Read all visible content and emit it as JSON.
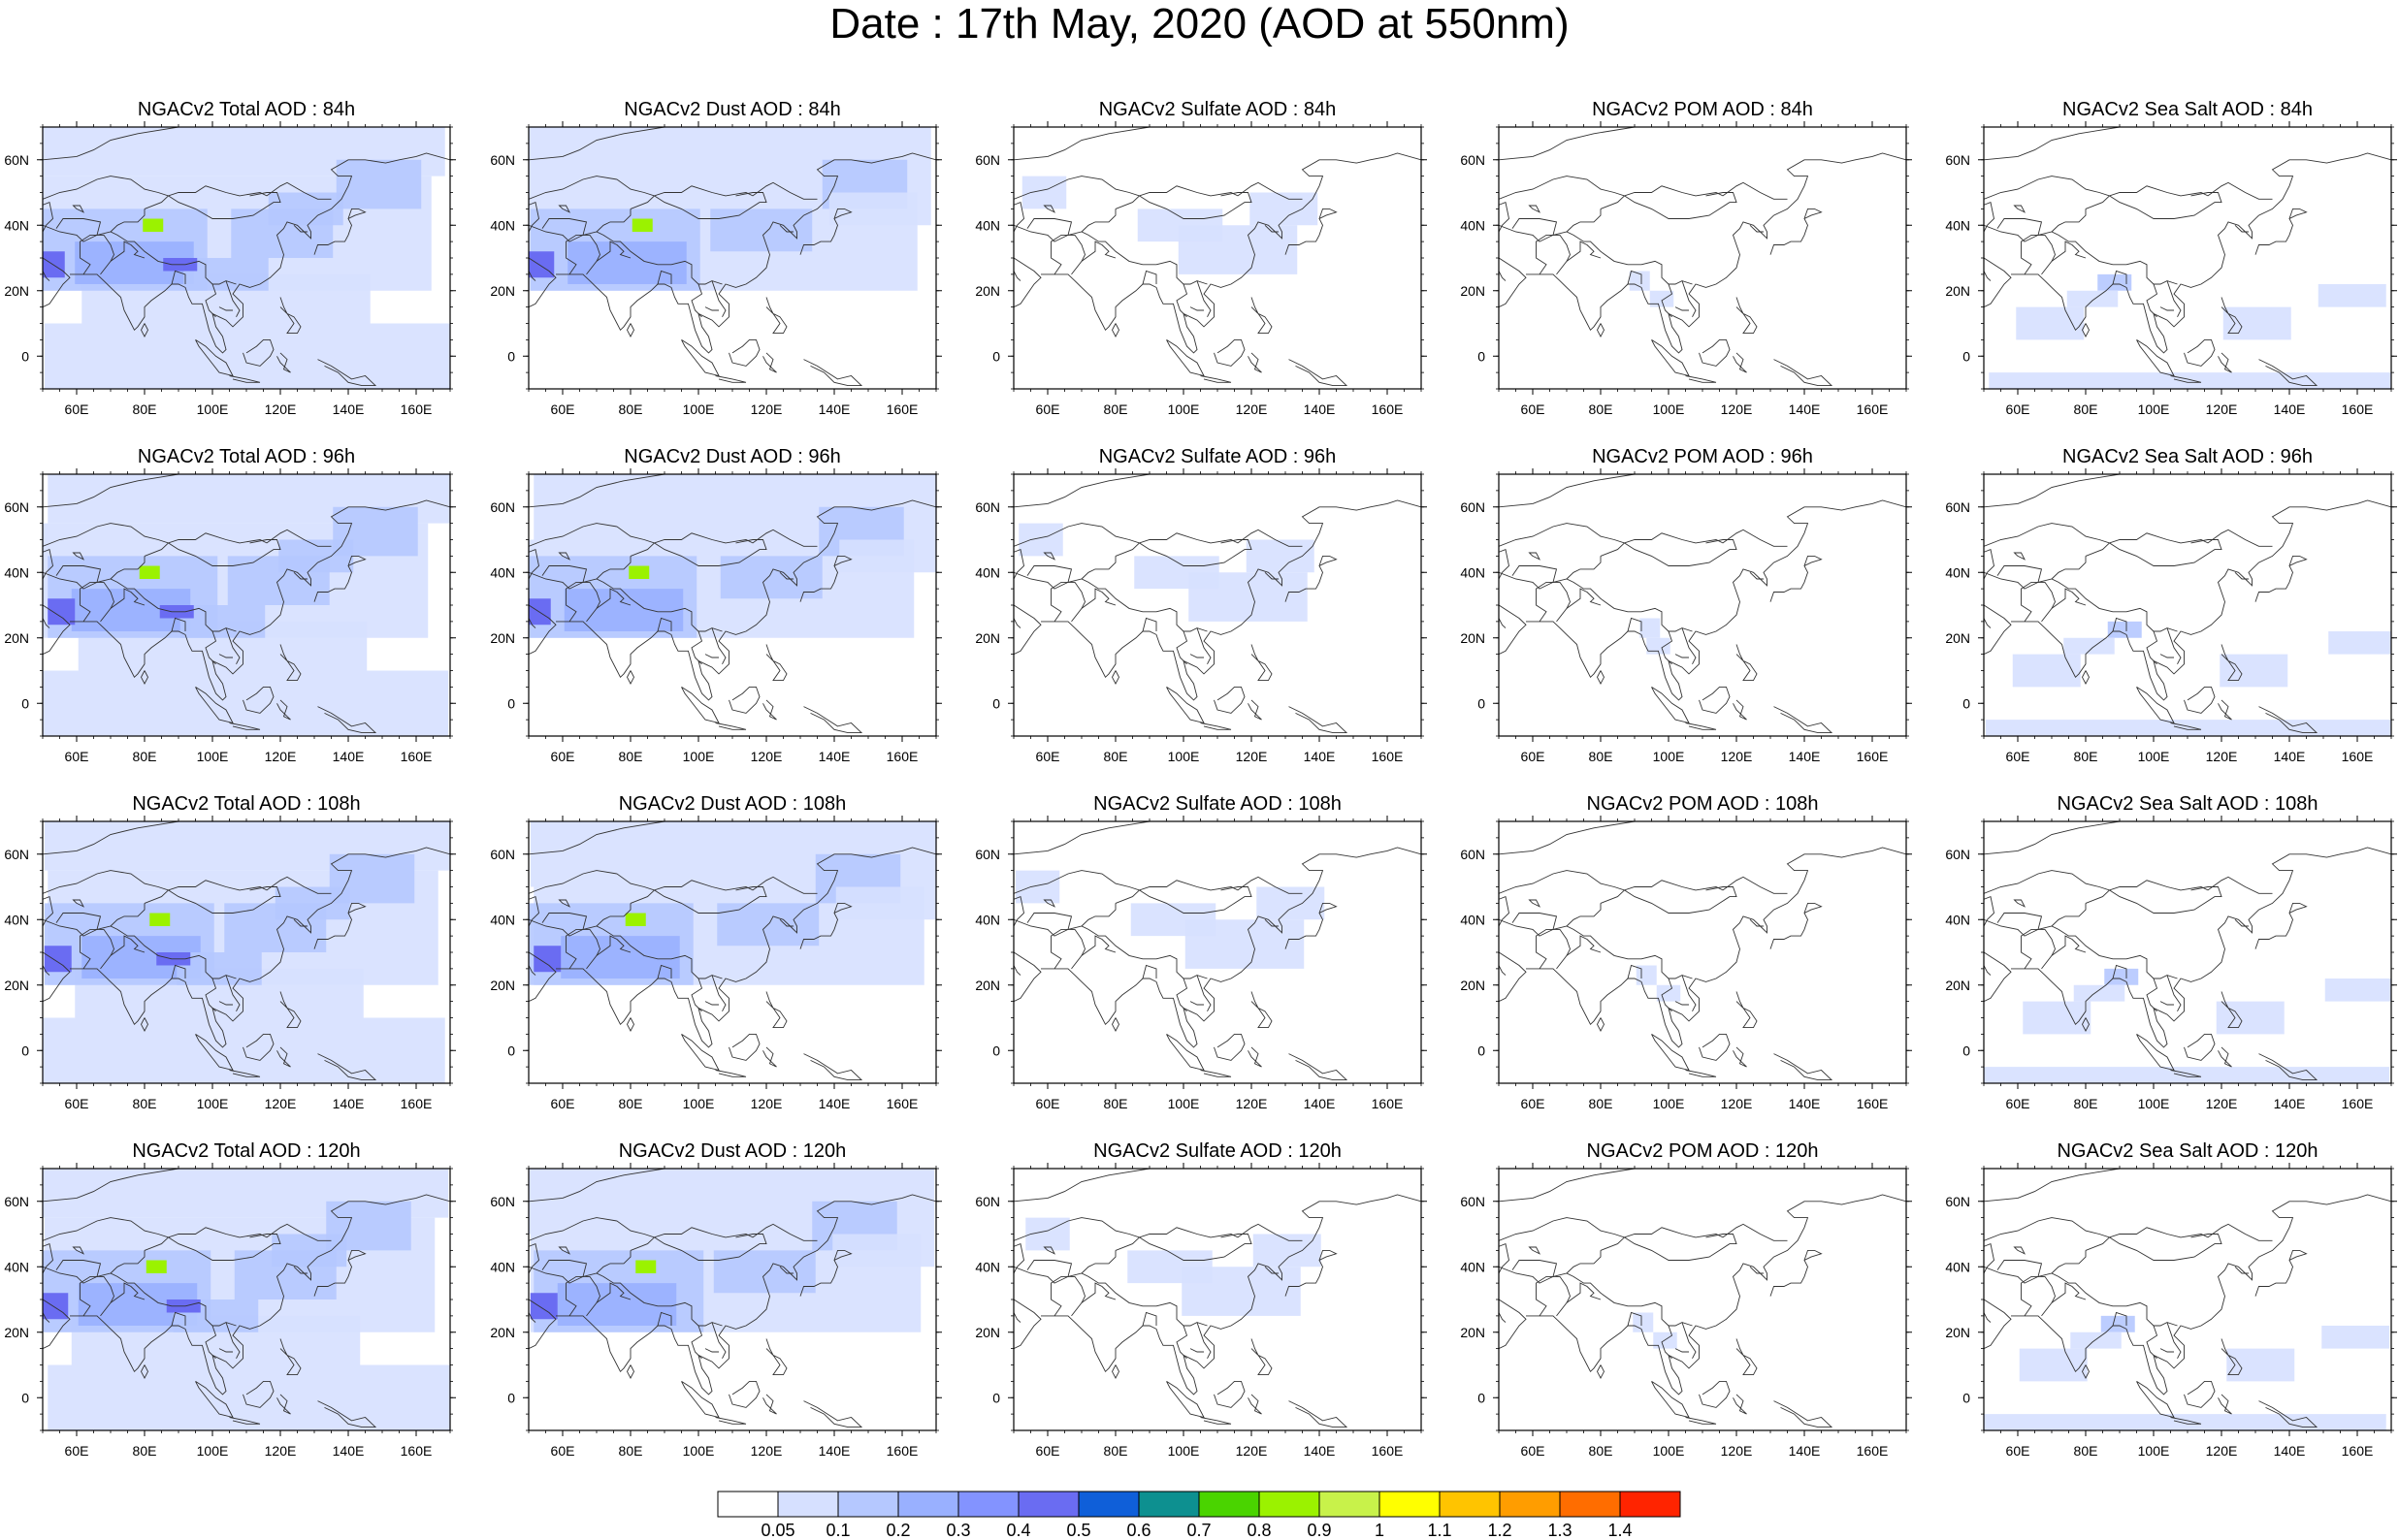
{
  "title": "Date : 17th May, 2020 (AOD at 550nm)",
  "panels": [
    [
      "NGACv2 Total AOD : 84h",
      "NGACv2 Dust AOD : 84h",
      "NGACv2 Sulfate AOD : 84h",
      "NGACv2 POM AOD : 84h",
      "NGACv2 Sea Salt AOD : 84h"
    ],
    [
      "NGACv2 Total AOD : 96h",
      "NGACv2 Dust AOD : 96h",
      "NGACv2 Sulfate AOD : 96h",
      "NGACv2 POM AOD : 96h",
      "NGACv2 Sea Salt AOD : 96h"
    ],
    [
      "NGACv2 Total AOD : 108h",
      "NGACv2 Dust AOD : 108h",
      "NGACv2 Sulfate AOD : 108h",
      "NGACv2 POM AOD : 108h",
      "NGACv2 Sea Salt AOD : 108h"
    ],
    [
      "NGACv2 Total AOD : 120h",
      "NGACv2 Dust AOD : 120h",
      "NGACv2 Sulfate AOD : 120h",
      "NGACv2 POM AOD : 120h",
      "NGACv2 Sea Salt  AOD : 120h"
    ]
  ],
  "axes": {
    "lon_labels": [
      "60E",
      "80E",
      "100E",
      "120E",
      "140E",
      "160E"
    ],
    "lat_labels": [
      "60N",
      "40N",
      "20N",
      "0"
    ]
  },
  "colorbar": {
    "labels": [
      "0.05",
      "0.1",
      "0.2",
      "0.3",
      "0.4",
      "0.5",
      "0.6",
      "0.7",
      "0.8",
      "0.9",
      "1",
      "1.1",
      "1.2",
      "1.3",
      "1.4"
    ],
    "colors": [
      "#ffffff",
      "#d6e0ff",
      "#b5c8ff",
      "#99b0ff",
      "#8393ff",
      "#6a6cf2",
      "#0f5fd9",
      "#0d9090",
      "#4ad400",
      "#9bf200",
      "#c8f24a",
      "#ffff00",
      "#ffc400",
      "#ff9d00",
      "#ff6d00",
      "#ff2400"
    ]
  },
  "accent": {
    "map_outline": "#333333"
  }
}
